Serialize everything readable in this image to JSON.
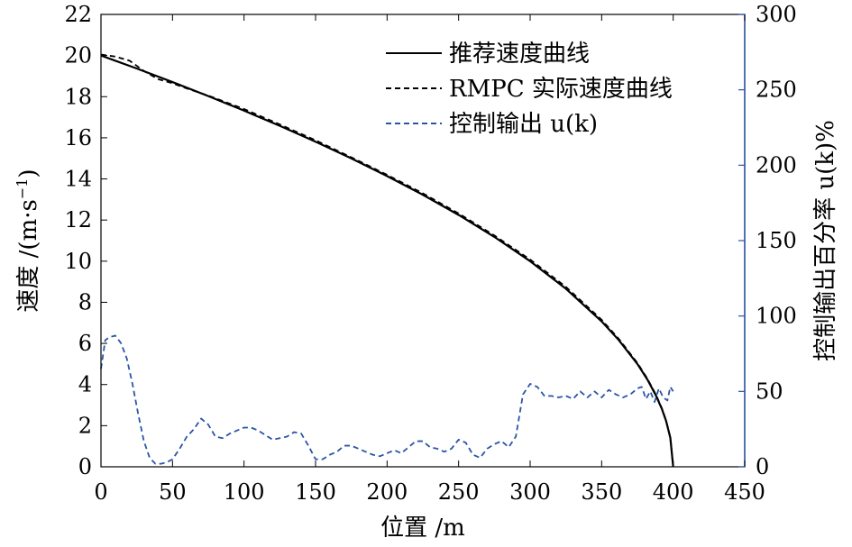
{
  "chart_data": {
    "type": "line",
    "xlabel": "位置 /m",
    "ylabel": "速度 /(m·s",
    "ylabel_sup": "−1",
    "ylabel_close": ")",
    "y2label": "控制输出百分率 u(k)%",
    "xlim": [
      0,
      450
    ],
    "ylim": [
      0,
      22
    ],
    "y2lim": [
      0,
      300
    ],
    "xticks": [
      0,
      50,
      100,
      150,
      200,
      250,
      300,
      350,
      400,
      450
    ],
    "yticks": [
      0,
      2,
      4,
      6,
      8,
      10,
      12,
      14,
      16,
      18,
      20,
      22
    ],
    "y2ticks": [
      0,
      50,
      100,
      150,
      200,
      250,
      300
    ],
    "legend_position": "top-right",
    "series": [
      {
        "name": "推荐速度曲线",
        "axis": "left",
        "style": "solid",
        "color": "#000000",
        "x": [
          0,
          25,
          50,
          75,
          100,
          125,
          150,
          175,
          200,
          225,
          250,
          275,
          300,
          325,
          350,
          362,
          375,
          382,
          388,
          392,
          395,
          398,
          400
        ],
        "y": [
          20.0,
          19.37,
          18.71,
          18.03,
          17.32,
          16.58,
          15.81,
          15.0,
          14.14,
          13.23,
          12.25,
          11.18,
          10.0,
          8.66,
          7.07,
          6.16,
          5.0,
          4.24,
          3.46,
          2.83,
          2.24,
          1.41,
          0
        ]
      },
      {
        "name": "RMPC 实际速度曲线",
        "axis": "left",
        "style": "dashed",
        "color": "#000000",
        "x": [
          0,
          10,
          20,
          30,
          40,
          50,
          60,
          75,
          100,
          125,
          150,
          175,
          200,
          225,
          250,
          275,
          300,
          325,
          350,
          362,
          375,
          382,
          388,
          392,
          395,
          398,
          400
        ],
        "y": [
          20.05,
          19.95,
          19.75,
          19.25,
          18.85,
          18.65,
          18.4,
          18.05,
          17.4,
          16.65,
          15.88,
          15.05,
          14.2,
          13.3,
          12.32,
          11.25,
          10.08,
          8.75,
          7.15,
          6.22,
          5.05,
          4.28,
          3.5,
          2.86,
          2.26,
          1.43,
          0
        ]
      },
      {
        "name": "控制输出 u(k)",
        "axis": "right",
        "style": "dashed",
        "color": "#2a55a6",
        "x": [
          0,
          3,
          6,
          10,
          14,
          18,
          22,
          26,
          30,
          34,
          38,
          42,
          46,
          50,
          55,
          60,
          65,
          70,
          75,
          80,
          85,
          90,
          95,
          100,
          105,
          110,
          115,
          120,
          125,
          130,
          135,
          140,
          145,
          150,
          155,
          160,
          165,
          170,
          175,
          180,
          185,
          190,
          195,
          200,
          205,
          210,
          215,
          220,
          225,
          230,
          235,
          240,
          245,
          250,
          255,
          260,
          265,
          270,
          275,
          280,
          285,
          290,
          295,
          300,
          305,
          310,
          315,
          320,
          325,
          330,
          335,
          340,
          345,
          350,
          355,
          360,
          365,
          370,
          375,
          378,
          381,
          384,
          387,
          390,
          393,
          396,
          398,
          400
        ],
        "y": [
          65,
          84,
          86,
          87,
          82,
          72,
          55,
          35,
          17,
          6,
          2,
          2,
          3,
          5,
          12,
          20,
          25,
          32,
          28,
          20,
          19,
          22,
          24,
          26,
          26,
          24,
          21,
          18,
          19,
          20,
          23,
          22,
          14,
          5,
          5,
          8,
          10,
          14,
          14,
          12,
          10,
          8,
          7,
          9,
          11,
          9,
          13,
          17,
          17,
          13,
          12,
          10,
          12,
          18,
          16,
          8,
          6,
          12,
          15,
          17,
          13,
          20,
          48,
          55,
          53,
          47,
          47,
          46,
          47,
          45,
          50,
          46,
          50,
          46,
          51,
          48,
          46,
          48,
          52,
          53,
          45,
          50,
          43,
          52,
          46,
          44,
          53,
          50
        ]
      }
    ]
  }
}
